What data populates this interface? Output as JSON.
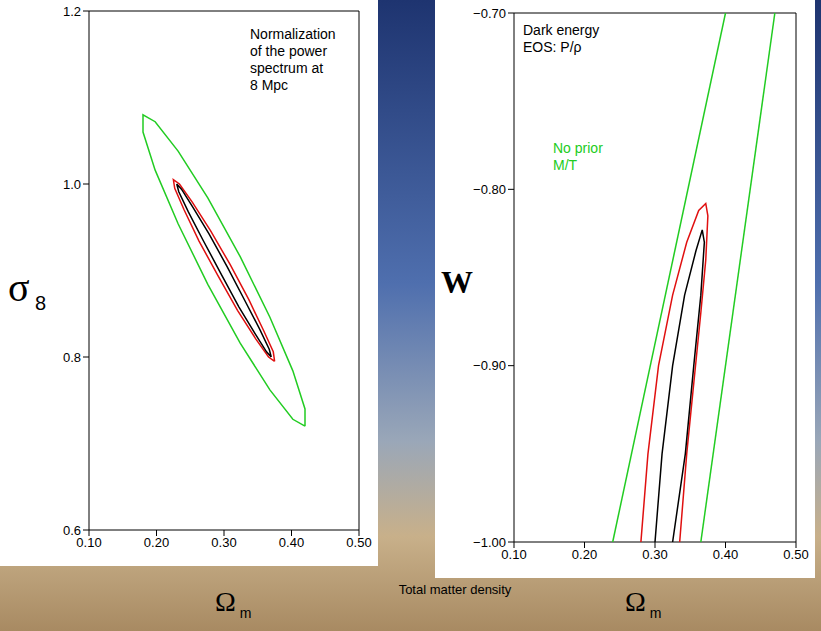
{
  "chart_data": [
    {
      "type": "contour",
      "xlabel": "Ω m",
      "ylabel": "σ 8",
      "xlim": [
        0.1,
        0.5
      ],
      "xticks": [
        {
          "value": 0.1,
          "label": "0.10"
        },
        {
          "value": 0.2,
          "label": "0.20"
        },
        {
          "value": 0.3,
          "label": "0.30"
        },
        {
          "value": 0.4,
          "label": "0.40"
        },
        {
          "value": 0.5,
          "label": "0.50"
        }
      ],
      "ylim": [
        0.6,
        1.2
      ],
      "yticks": [
        0.6,
        0.8,
        {
          "value": 1.0,
          "label": "1.0"
        },
        1.2
      ],
      "marker": "none",
      "line_style": "solid",
      "annotations": [
        {
          "lines": [
            "Normalization",
            "of the power",
            "spectrum at",
            "8 Mpc"
          ],
          "color": "#000000"
        }
      ],
      "series": [
        {
          "color": "#22cc22",
          "x": [
            0.42,
            0.42,
            0.402,
            0.368,
            0.324,
            0.276,
            0.232,
            0.198,
            0.18,
            0.18,
            0.198,
            0.232,
            0.276,
            0.324,
            0.368,
            0.402,
            0.42
          ],
          "y": [
            0.72,
            0.74,
            0.784,
            0.846,
            0.916,
            0.984,
            1.038,
            1.072,
            1.08,
            1.06,
            1.016,
            0.954,
            0.884,
            0.816,
            0.762,
            0.728,
            0.72
          ]
        },
        {
          "color": "#e01010",
          "x": [
            0.375,
            0.373,
            0.359,
            0.337,
            0.309,
            0.28,
            0.253,
            0.234,
            0.225,
            0.227,
            0.241,
            0.263,
            0.291,
            0.32,
            0.347,
            0.366,
            0.375
          ],
          "y": [
            0.795,
            0.806,
            0.83,
            0.866,
            0.907,
            0.946,
            0.979,
            1.0,
            1.005,
            0.995,
            0.97,
            0.934,
            0.894,
            0.854,
            0.821,
            0.8,
            0.795
          ]
        },
        {
          "color": "#000000",
          "x": [
            0.37,
            0.367,
            0.353,
            0.331,
            0.305,
            0.278,
            0.254,
            0.237,
            0.23,
            0.233,
            0.247,
            0.269,
            0.295,
            0.322,
            0.346,
            0.363,
            0.37
          ],
          "y": [
            0.8,
            0.809,
            0.832,
            0.865,
            0.904,
            0.942,
            0.973,
            0.994,
            1.0,
            0.991,
            0.968,
            0.935,
            0.897,
            0.858,
            0.827,
            0.806,
            0.8
          ]
        }
      ]
    },
    {
      "type": "contour",
      "xlabel": "Ω m",
      "ylabel": "W",
      "xlim": [
        0.1,
        0.5
      ],
      "xticks": [
        {
          "value": 0.1,
          "label": "0.10"
        },
        {
          "value": 0.2,
          "label": "0.20"
        },
        {
          "value": 0.3,
          "label": "0.30"
        },
        {
          "value": 0.4,
          "label": "0.40"
        },
        {
          "value": 0.5,
          "label": "0.50"
        }
      ],
      "ylim": [
        -1.0,
        -0.7
      ],
      "yticks": [
        {
          "value": -1.0,
          "label": "−1.00"
        },
        {
          "value": -0.9,
          "label": "−0.90"
        },
        {
          "value": -0.8,
          "label": "−0.80"
        },
        {
          "value": -0.7,
          "label": "−0.70"
        }
      ],
      "marker": "none",
      "line_style": "solid",
      "annotations": [
        {
          "lines": [
            "Dark energy",
            "EOS: P/ρ"
          ],
          "color": "#000000"
        },
        {
          "lines": [
            "No prior",
            "M/T"
          ],
          "color": "#22cc22"
        }
      ],
      "series": [
        {
          "color": "#22cc22",
          "x": [
            0.24,
            0.4
          ],
          "y": [
            -1.0,
            -0.7
          ]
        },
        {
          "color": "#22cc22",
          "x": [
            0.365,
            0.47
          ],
          "y": [
            -1.0,
            -0.7
          ]
        },
        {
          "color": "#e01010",
          "x": [
            0.28,
            0.29,
            0.305,
            0.325,
            0.345,
            0.362,
            0.372,
            0.375,
            0.372,
            0.365,
            0.355,
            0.345,
            0.335
          ],
          "y": [
            -1.0,
            -0.95,
            -0.9,
            -0.86,
            -0.83,
            -0.812,
            -0.808,
            -0.815,
            -0.84,
            -0.87,
            -0.91,
            -0.95,
            -1.0
          ]
        },
        {
          "color": "#000000",
          "x": [
            0.3,
            0.31,
            0.325,
            0.342,
            0.358,
            0.367,
            0.37,
            0.365,
            0.355,
            0.343,
            0.325
          ],
          "y": [
            -1.0,
            -0.95,
            -0.9,
            -0.86,
            -0.835,
            -0.823,
            -0.83,
            -0.86,
            -0.9,
            -0.95,
            -1.0
          ]
        }
      ]
    }
  ],
  "footer": "Total matter density"
}
